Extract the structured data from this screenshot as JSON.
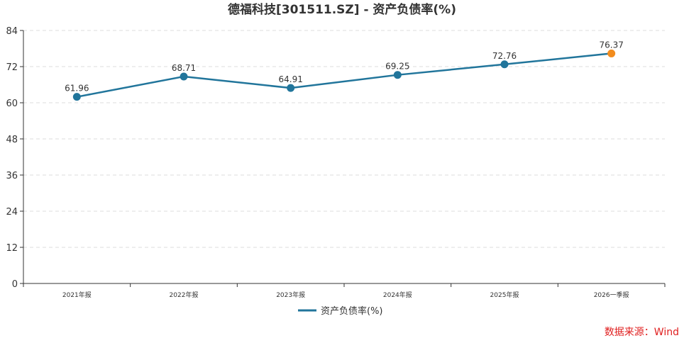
{
  "chart_data": {
    "type": "line",
    "title": "德福科技[301511.SZ] - 资产负债率(%)",
    "categories": [
      "2021年报",
      "2022年报",
      "2023年报",
      "2024年报",
      "2025年报",
      "2026一季报"
    ],
    "series": [
      {
        "name": "资产负债率(%)",
        "values": [
          61.96,
          68.71,
          64.91,
          69.25,
          72.76,
          76.37
        ],
        "color": "#21759b",
        "highlight_last_color": "#f28c1e"
      }
    ],
    "yticks": [
      0,
      12,
      24,
      36,
      48,
      60,
      72,
      84
    ],
    "ylim": [
      0,
      84
    ],
    "grid": true,
    "legend_position": "bottom-center",
    "xlabel": "",
    "ylabel": ""
  },
  "source_text": "数据来源：Wind"
}
